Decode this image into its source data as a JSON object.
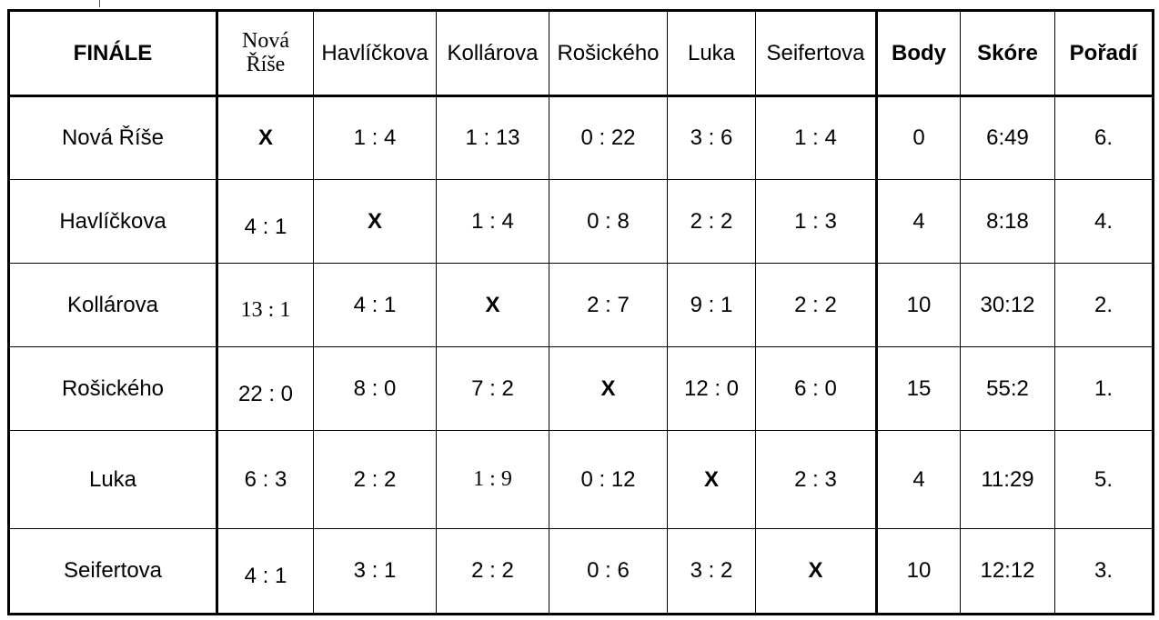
{
  "table": {
    "title": "FINÁLE",
    "headers": [
      "Nová Říše",
      "Havlíčkova",
      "Kollárova",
      "Rošického",
      "Luka",
      "Seifertova",
      "Body",
      "Skóre",
      "Pořadí"
    ],
    "rows": [
      {
        "team": "Nová Říše",
        "cells": [
          "X",
          "1 : 4",
          "1 : 13",
          "0 : 22",
          "3 : 6",
          "1 : 4",
          "0",
          "6:49",
          "6."
        ]
      },
      {
        "team": "Havlíčkova",
        "cells": [
          "4 : 1",
          "X",
          "1 : 4",
          "0 : 8",
          "2 : 2",
          "1 : 3",
          "4",
          "8:18",
          "4."
        ]
      },
      {
        "team": "Kollárova",
        "cells": [
          "13 : 1",
          "4 : 1",
          "X",
          "2 : 7",
          "9 : 1",
          "2 : 2",
          "10",
          "30:12",
          "2."
        ]
      },
      {
        "team": "Rošického",
        "cells": [
          "22 : 0",
          "8 : 0",
          "7 : 2",
          "X",
          "12 : 0",
          "6 : 0",
          "15",
          "55:2",
          "1."
        ]
      },
      {
        "team": "Luka",
        "cells": [
          "6 : 3",
          "2 : 2",
          "1 : 9",
          "0 : 12",
          "X",
          "2 : 3",
          "4",
          "11:29",
          "5."
        ]
      },
      {
        "team": "Seifertova",
        "cells": [
          "4 : 1",
          "3 : 1",
          "2 : 2",
          "0 : 6",
          "3 : 2",
          "X",
          "10",
          "12:12",
          "3."
        ]
      }
    ]
  }
}
